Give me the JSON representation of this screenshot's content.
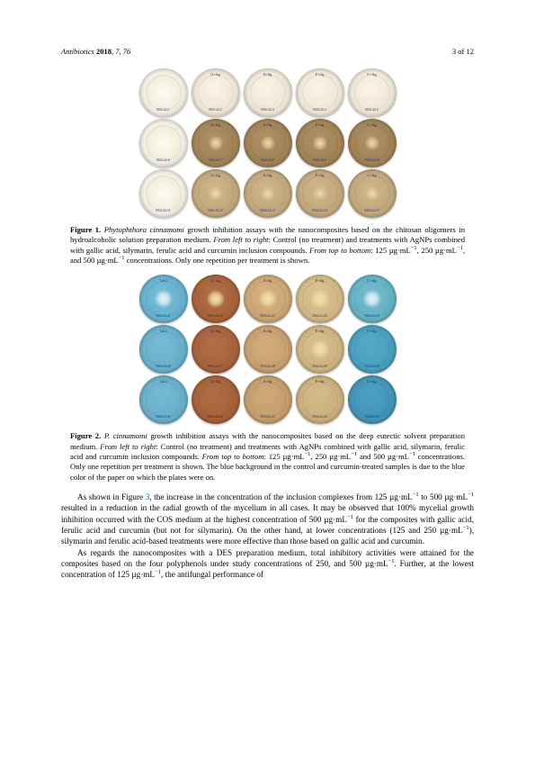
{
  "header": {
    "journal_italic": "Antibiotics",
    "year_bold": "2018",
    "vol_issue": ", 7, 76",
    "page_num": "3 of 12"
  },
  "figure1": {
    "dishes": {
      "rows": 3,
      "cols": 5,
      "row_colors": [
        "#efe7d8",
        "#a38458",
        "#c3a97e"
      ],
      "control_color": "#f4efe4",
      "center_spot_opacity": [
        0.0,
        0.55,
        0.4
      ],
      "labels_top": [
        "",
        "G+Ag",
        "S+Ag",
        "F+Ag",
        "C+Ag"
      ],
      "labels_bottom": [
        "Control",
        "125",
        "250",
        "500",
        ""
      ]
    },
    "caption_num": "Figure 1.",
    "caption_text_parts": [
      {
        "t": " ",
        "s": ""
      },
      {
        "t": "Phytophthora cinnamomi",
        "s": "ital"
      },
      {
        "t": " growth inhibition assays with the nanocomposites based on the chitosan oligomers in hydroalcoholic solution preparation medium. ",
        "s": ""
      },
      {
        "t": "From left to right",
        "s": "ital"
      },
      {
        "t": ": Control (no treatment) and treatments with AgNPs combined with gallic acid, silymarin, ferulic acid and curcumin inclusion compounds. ",
        "s": ""
      },
      {
        "t": "From top to bottom",
        "s": "ital"
      },
      {
        "t": ": 125 µg·mL",
        "s": ""
      },
      {
        "t": "−1",
        "s": "sup"
      },
      {
        "t": ", 250 µg·mL",
        "s": ""
      },
      {
        "t": "−1",
        "s": "sup"
      },
      {
        "t": ", and 500 µg·mL",
        "s": ""
      },
      {
        "t": "−1",
        "s": "sup"
      },
      {
        "t": " concentrations. Only one repetition per treatment is shown.",
        "s": ""
      }
    ]
  },
  "figure2": {
    "dishes": {
      "rows": 3,
      "cols": 5,
      "cell_colors": [
        [
          "#69b2d0",
          "#a8643a",
          "#cda776",
          "#d2b988",
          "#67b3c4"
        ],
        [
          "#6ab1cc",
          "#a8643c",
          "#c9a272",
          "#ceb583",
          "#4aa0bf"
        ],
        [
          "#6bb0ca",
          "#a7633a",
          "#c69f6e",
          "#cbb17e",
          "#4496b8"
        ]
      ],
      "center_spot": [
        [
          true,
          true,
          true,
          true,
          true
        ],
        [
          false,
          false,
          false,
          true,
          false
        ],
        [
          false,
          false,
          false,
          false,
          false
        ]
      ]
    },
    "caption_num": "Figure 2.",
    "caption_text_parts": [
      {
        "t": " ",
        "s": ""
      },
      {
        "t": "P. cinnamomi",
        "s": "ital"
      },
      {
        "t": " growth inhibition assays with the nanocomposites based on the deep eutectic solvent preparation medium. ",
        "s": ""
      },
      {
        "t": "From left to right",
        "s": "ital"
      },
      {
        "t": ": Control (no treatment) and treatments with AgNPs combined with gallic acid, silymarin, ferulic acid and curcumin inclusion compounds. ",
        "s": ""
      },
      {
        "t": "From top to bottom",
        "s": "ital"
      },
      {
        "t": ": 125 µg·mL",
        "s": ""
      },
      {
        "t": "−1",
        "s": "sup"
      },
      {
        "t": ", 250 µg·mL",
        "s": ""
      },
      {
        "t": "−1",
        "s": "sup"
      },
      {
        "t": " and 500 µg·mL",
        "s": ""
      },
      {
        "t": "−1",
        "s": "sup"
      },
      {
        "t": " concentrations. Only one repetition per treatment is shown. The blue background in the control and curcumin-treated samples is due to the blue color of the paper on which the plates were on.",
        "s": ""
      }
    ]
  },
  "paragraphs": [
    [
      {
        "t": "As shown in Figure ",
        "s": ""
      },
      {
        "t": "3",
        "s": "link"
      },
      {
        "t": ", the increase in the concentration of the inclusion complexes from 125 µg·mL",
        "s": ""
      },
      {
        "t": "−1",
        "s": "sup"
      },
      {
        "t": " to 500 µg·mL",
        "s": ""
      },
      {
        "t": "−1",
        "s": "sup"
      },
      {
        "t": " resulted in a reduction in the radial growth of the mycelium in all cases. It may be observed that 100% mycelial growth inhibition occurred with the COS medium at the highest concentration of 500 µg·mL",
        "s": ""
      },
      {
        "t": "−1",
        "s": "sup"
      },
      {
        "t": " for the composites with gallic acid, ferulic acid and curcumin (but not for silymarin). On the other hand, at lower concentrations (125 and 250 µg·mL",
        "s": ""
      },
      {
        "t": "−1",
        "s": "sup"
      },
      {
        "t": "), silymarin and ferulic acid-based treatments were more effective than those based on gallic acid and curcumin.",
        "s": ""
      }
    ],
    [
      {
        "t": "As regards the nanocomposites with a DES preparation medium, total inhibitory activities were attained for the composites based on the four polyphenols under study concentrations of 250, and 500 µg·mL",
        "s": ""
      },
      {
        "t": "−1",
        "s": "sup"
      },
      {
        "t": ". Further, at the lowest concentration of 125 µg·mL",
        "s": ""
      },
      {
        "t": "−1",
        "s": "sup"
      },
      {
        "t": ", the antifungal performance of",
        "s": ""
      }
    ]
  ]
}
